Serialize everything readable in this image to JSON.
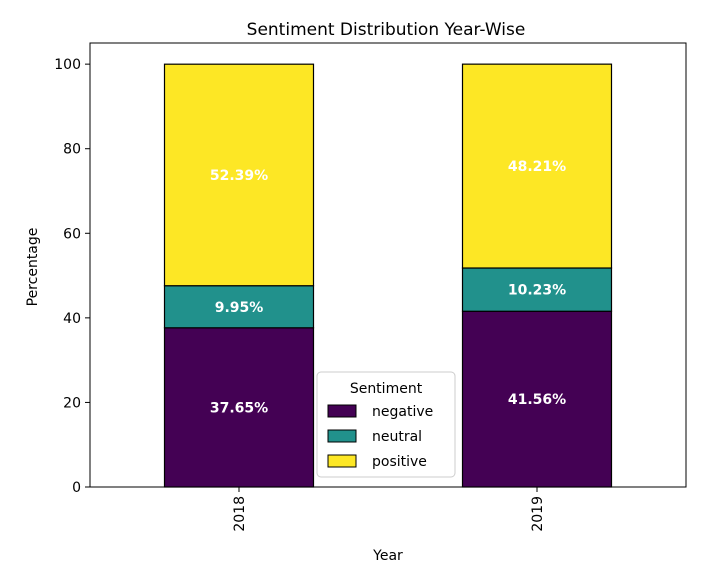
{
  "chart_data": {
    "type": "bar",
    "stacked": true,
    "title": "Sentiment Distribution Year-Wise",
    "xlabel": "Year",
    "ylabel": "Percentage",
    "ylim": [
      0,
      105
    ],
    "yticks": [
      0,
      20,
      40,
      60,
      80,
      100
    ],
    "categories": [
      "2018",
      "2019"
    ],
    "series": [
      {
        "name": "negative",
        "values": [
          37.65,
          41.56
        ],
        "labels": [
          "37.65%",
          "41.56%"
        ],
        "color": "#440154"
      },
      {
        "name": "neutral",
        "values": [
          9.95,
          10.23
        ],
        "labels": [
          "9.95%",
          "10.23%"
        ],
        "color": "#21918c"
      },
      {
        "name": "positive",
        "values": [
          52.39,
          48.21
        ],
        "labels": [
          "52.39%",
          "48.21%"
        ],
        "color": "#fde725"
      }
    ],
    "legend": {
      "title": "Sentiment",
      "placement": "lower-center"
    },
    "grid": false
  }
}
